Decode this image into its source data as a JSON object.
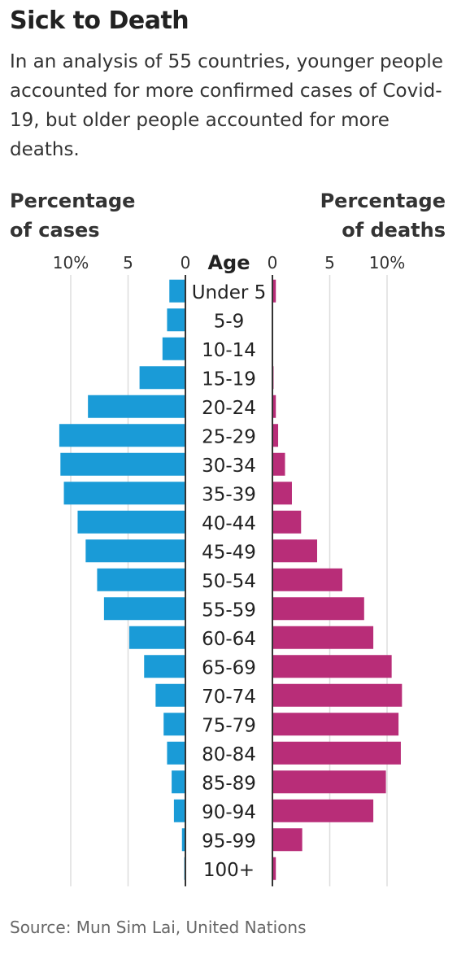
{
  "title": "Sick to Death",
  "subtitle": "In an analysis of 55 countries, younger people accounted for more confirmed cases of Covid-19, but older people accounted for more deaths.",
  "source": "Source: Mun Sim Lai, United Nations",
  "colors": {
    "cases": "#1a9bd7",
    "deaths": "#b82d78",
    "grid": "#dddddd",
    "axis": "#333333"
  },
  "chart_data": {
    "type": "bar",
    "orientation": "horizontal-population-pyramid",
    "center_label": "Age",
    "left_axis": {
      "title_line1": "Percentage",
      "title_line2": "of cases",
      "ticks": [
        "10%",
        "5",
        "0"
      ],
      "tick_values": [
        10,
        5,
        0
      ],
      "range": [
        0,
        11
      ]
    },
    "right_axis": {
      "title_line1": "Percentage",
      "title_line2": "of deaths",
      "ticks": [
        "0",
        "5",
        "10%"
      ],
      "tick_values": [
        0,
        5,
        10
      ],
      "range": [
        0,
        11
      ]
    },
    "categories": [
      "Under 5",
      "5-9",
      "10-14",
      "15-19",
      "20-24",
      "25-29",
      "30-34",
      "35-39",
      "40-44",
      "45-49",
      "50-54",
      "55-59",
      "60-64",
      "65-69",
      "70-74",
      "75-79",
      "80-84",
      "85-89",
      "90-94",
      "95-99",
      "100+"
    ],
    "series": [
      {
        "key": "cases",
        "values": [
          1.4,
          1.6,
          2.0,
          4.0,
          8.5,
          11.0,
          10.9,
          10.6,
          9.4,
          8.7,
          7.7,
          7.1,
          4.9,
          3.6,
          2.6,
          1.9,
          1.6,
          1.2,
          1.0,
          0.3,
          0.1
        ]
      },
      {
        "key": "deaths",
        "values": [
          0.3,
          0.0,
          0.0,
          0.1,
          0.3,
          0.5,
          1.1,
          1.7,
          2.5,
          3.9,
          6.1,
          8.0,
          8.8,
          10.4,
          11.3,
          11.0,
          11.2,
          9.9,
          8.8,
          2.6,
          0.3
        ]
      }
    ],
    "grid": true,
    "legend": "none"
  }
}
